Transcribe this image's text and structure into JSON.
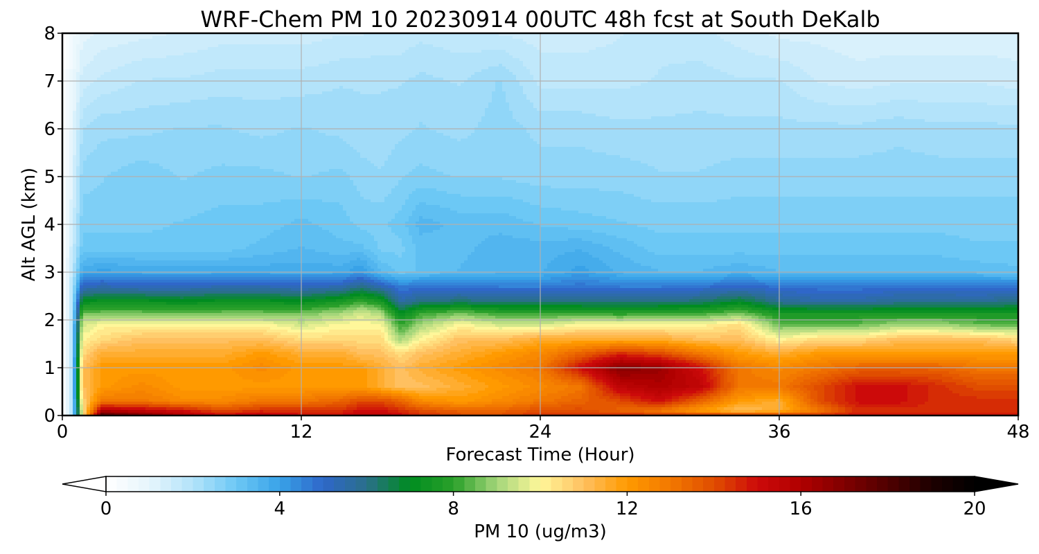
{
  "chart_data": {
    "type": "heatmap",
    "title": "WRF-Chem PM 10  20230914 00UTC 48h fcst at South DeKalb",
    "xlabel": "Forecast Time (Hour)",
    "ylabel": "Alt AGL (km)",
    "xlim": [
      0,
      48
    ],
    "ylim": [
      0,
      8
    ],
    "x_ticks": [
      "0",
      "12",
      "24",
      "36",
      "48"
    ],
    "y_ticks": [
      "0",
      "1",
      "2",
      "3",
      "4",
      "5",
      "6",
      "7",
      "8"
    ],
    "grid": true,
    "colorbar": {
      "label": "PM 10  (ug/m3)",
      "range": [
        0,
        20
      ],
      "ticks": [
        "0",
        "4",
        "8",
        "12",
        "16",
        "20"
      ],
      "extend": "both",
      "stops": [
        [
          0,
          "#ffffff"
        ],
        [
          1,
          "#e6f5fc"
        ],
        [
          2,
          "#b3e3fa"
        ],
        [
          3,
          "#6cc8f5"
        ],
        [
          4,
          "#38a2e8"
        ],
        [
          5,
          "#2f67c9"
        ],
        [
          6,
          "#2a6f8a"
        ],
        [
          7,
          "#008c20"
        ],
        [
          8,
          "#2aa02a"
        ],
        [
          9,
          "#a4d67a"
        ],
        [
          10,
          "#fff79a"
        ],
        [
          11,
          "#ffc060"
        ],
        [
          12,
          "#ff9a00"
        ],
        [
          13,
          "#f27800"
        ],
        [
          14,
          "#e04d00"
        ],
        [
          15,
          "#cc0a0a"
        ],
        [
          16,
          "#b00000"
        ],
        [
          17,
          "#800000"
        ],
        [
          18,
          "#500000"
        ],
        [
          19,
          "#1e0000"
        ],
        [
          20,
          "#000000"
        ]
      ]
    },
    "x_hours": [
      0,
      0.5,
      1,
      2,
      4,
      6,
      8,
      10,
      12,
      14,
      15,
      16,
      17,
      18,
      20,
      22,
      24,
      26,
      28,
      30,
      32,
      34,
      36,
      38,
      40,
      42,
      44,
      46,
      48
    ],
    "layers": [
      {
        "alt_km": 0.0,
        "values": [
          0,
          2,
          10,
          18,
          17,
          16,
          15,
          15.5,
          15,
          15,
          15.5,
          15.5,
          15,
          14.5,
          14,
          14,
          14.5,
          14.5,
          14.5,
          14.5,
          14.5,
          14.5,
          14.5,
          14.5,
          15,
          15,
          15,
          15,
          15
        ]
      },
      {
        "alt_km": 0.1,
        "values": [
          0,
          2,
          10,
          16,
          15.5,
          15,
          14,
          14.5,
          14.5,
          14.5,
          15,
          15,
          14.5,
          14,
          13.5,
          13.5,
          14,
          14,
          13.5,
          13,
          12,
          11,
          11.5,
          13,
          14.5,
          14.5,
          14.5,
          14.5,
          14.5
        ]
      },
      {
        "alt_km": 0.3,
        "values": [
          0,
          2,
          10.5,
          13,
          13,
          12.5,
          12.5,
          13,
          13,
          13.5,
          14,
          14,
          13.5,
          12.5,
          12,
          12.5,
          13,
          13.5,
          14,
          15,
          13.5,
          12,
          11.5,
          14,
          15,
          15,
          14.5,
          14.5,
          14.5
        ]
      },
      {
        "alt_km": 0.6,
        "values": [
          0,
          2,
          11,
          12,
          12.5,
          12,
          12,
          12,
          12,
          12,
          12,
          11.5,
          11,
          11,
          11.5,
          12,
          12.5,
          13,
          15.5,
          16,
          15.5,
          13,
          13,
          14,
          15,
          15,
          14.5,
          14,
          14
        ]
      },
      {
        "alt_km": 1.0,
        "values": [
          0,
          2,
          11,
          12,
          12,
          12,
          12,
          12.5,
          12,
          12,
          12,
          11.5,
          11,
          11.5,
          12,
          12.5,
          13,
          15,
          17,
          16.5,
          15,
          13,
          12.5,
          13,
          13.5,
          13.5,
          13.5,
          13,
          13
        ]
      },
      {
        "alt_km": 1.3,
        "values": [
          0,
          2,
          10.5,
          11.5,
          11.5,
          11.5,
          11.5,
          12,
          11.5,
          11.5,
          11,
          11,
          10.5,
          11,
          11.5,
          12,
          12.5,
          13.5,
          14.5,
          14,
          13,
          12,
          11.5,
          12,
          12,
          12,
          12,
          12,
          12
        ]
      },
      {
        "alt_km": 1.6,
        "values": [
          0,
          2,
          10,
          10.5,
          11,
          11,
          11,
          11,
          10.5,
          10.5,
          10.5,
          10.5,
          9,
          10,
          11,
          11,
          11.5,
          11.5,
          11.5,
          11.5,
          11,
          11,
          10,
          10.5,
          10.5,
          11,
          11,
          11,
          10.5
        ]
      },
      {
        "alt_km": 1.9,
        "values": [
          0,
          2,
          9.5,
          10,
          10,
          10,
          10,
          10,
          9.5,
          10,
          10,
          10,
          8,
          9,
          10,
          9.5,
          9.5,
          10,
          10,
          10,
          10,
          10.5,
          8.5,
          8.5,
          8.5,
          9,
          9,
          8.5,
          8.5
        ]
      },
      {
        "alt_km": 2.15,
        "values": [
          0,
          2,
          8.5,
          8.5,
          8.5,
          8.5,
          8.5,
          8.5,
          8.5,
          9,
          9.5,
          9,
          7,
          8,
          8.5,
          8,
          8,
          8,
          7.8,
          8,
          8,
          8.5,
          7.5,
          7.5,
          7.5,
          7.5,
          7.5,
          7.5,
          7.5
        ]
      },
      {
        "alt_km": 2.4,
        "values": [
          0,
          2,
          7,
          7.2,
          7.2,
          7,
          7.2,
          7.2,
          7,
          7.5,
          8,
          7.5,
          5.5,
          6,
          6.2,
          6,
          6,
          6,
          6,
          6,
          6.2,
          6.8,
          5.8,
          5.5,
          5.5,
          5.8,
          5.8,
          5.8,
          6
        ]
      },
      {
        "alt_km": 2.7,
        "values": [
          0,
          2,
          5.2,
          5.4,
          5.2,
          5.2,
          5.4,
          5.4,
          5.2,
          5.4,
          6,
          5.4,
          4.6,
          4.8,
          4.8,
          4.6,
          4.6,
          4.8,
          4.6,
          4.6,
          4.8,
          5,
          4.8,
          4.7,
          4.7,
          4.8,
          4.8,
          4.7,
          4.7
        ]
      },
      {
        "alt_km": 3.0,
        "values": [
          0,
          1.8,
          3.8,
          4,
          3.8,
          3.8,
          3.8,
          3.8,
          3.8,
          3.8,
          4.2,
          3.4,
          3,
          3.2,
          3.4,
          3.6,
          3.6,
          4,
          3.6,
          3.4,
          3.4,
          3.6,
          3.4,
          3.4,
          3.4,
          3.4,
          3.4,
          3.3,
          3.2
        ]
      },
      {
        "alt_km": 3.5,
        "values": [
          0,
          1.6,
          3,
          3,
          3,
          3,
          3,
          3.2,
          3.4,
          3.2,
          3.2,
          2.8,
          2.8,
          3.2,
          3.3,
          3.5,
          3.5,
          3.6,
          3.3,
          3,
          3,
          3,
          3,
          3,
          3,
          3,
          3,
          2.9,
          2.9
        ]
      },
      {
        "alt_km": 4.0,
        "values": [
          0,
          1.4,
          2.8,
          2.8,
          2.8,
          2.9,
          3,
          3,
          3.2,
          3,
          2.8,
          2.8,
          3,
          3.5,
          3.3,
          3.3,
          3.1,
          3,
          2.9,
          2.8,
          2.8,
          2.8,
          2.8,
          2.8,
          2.8,
          2.8,
          2.8,
          2.8,
          2.8
        ]
      },
      {
        "alt_km": 5.0,
        "values": [
          0,
          1.2,
          2.5,
          2.6,
          2.8,
          2.6,
          2.7,
          2.7,
          2.6,
          2.7,
          2.5,
          2.4,
          2.6,
          2.7,
          2.6,
          2.6,
          2.5,
          2.5,
          2.5,
          2.4,
          2.4,
          2.5,
          2.5,
          2.5,
          2.5,
          2.5,
          2.5,
          2.5,
          2.5
        ]
      },
      {
        "alt_km": 6.0,
        "values": [
          0,
          1,
          2.1,
          2.3,
          2.3,
          2.4,
          2.4,
          2.3,
          2.4,
          2.3,
          2.2,
          2.2,
          2.3,
          2.4,
          2.3,
          2.5,
          2.3,
          2.3,
          2.2,
          2.2,
          2.2,
          2.2,
          2.2,
          2.2,
          2.2,
          2.3,
          2.2,
          2.2,
          2.2
        ]
      },
      {
        "alt_km": 7.0,
        "values": [
          0,
          0.8,
          1.5,
          1.7,
          1.9,
          1.9,
          2,
          2,
          2,
          2.1,
          2.1,
          2.1,
          2.1,
          2.2,
          2.1,
          2.4,
          1.8,
          1.8,
          1.8,
          1.9,
          2,
          1.9,
          1.9,
          1.6,
          1.5,
          1.6,
          1.6,
          1.6,
          1.5
        ]
      },
      {
        "alt_km": 8.0,
        "values": [
          0,
          0.5,
          1,
          1.2,
          1.3,
          1.4,
          1.5,
          1.5,
          1.5,
          1.6,
          1.6,
          1.7,
          1.7,
          1.8,
          1.7,
          1.6,
          1.5,
          1.5,
          1.6,
          1.8,
          1.7,
          1.5,
          1.3,
          1.3,
          1.2,
          1.2,
          1.2,
          1.2,
          1.2
        ]
      }
    ]
  }
}
